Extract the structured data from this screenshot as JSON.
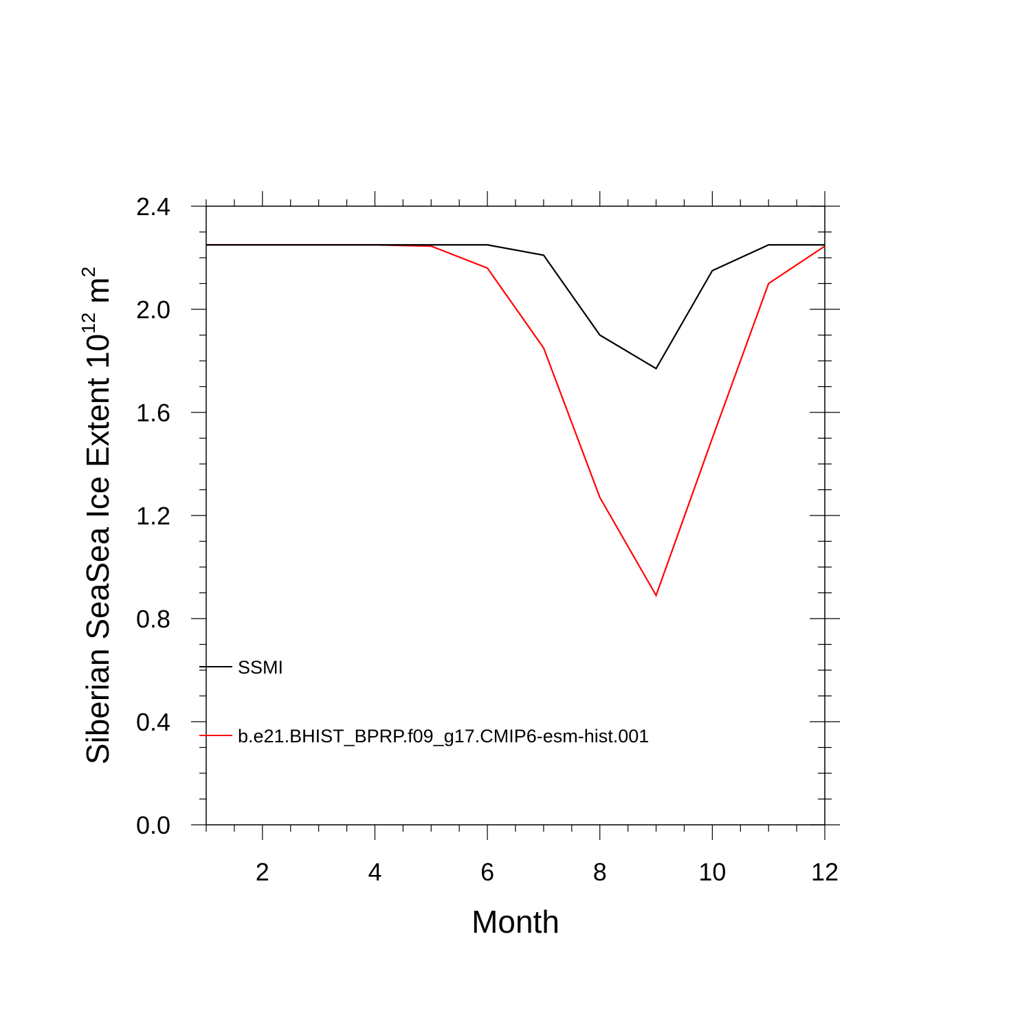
{
  "chart_data": {
    "type": "line",
    "xlabel": "Month",
    "ylabel_main": "Siberian SeaSea Ice Extent 10",
    "ylabel_exp": "12",
    "ylabel_unit": " m",
    "ylabel_unit_exp": "2",
    "xlim": [
      1,
      12
    ],
    "ylim": [
      0,
      2.4
    ],
    "xticks": [
      2,
      4,
      6,
      8,
      10,
      12
    ],
    "xtick_labels": [
      "2",
      "4",
      "6",
      "8",
      "10",
      "12"
    ],
    "yticks": [
      0,
      0.4,
      0.8,
      1.2,
      1.6,
      2.0,
      2.4
    ],
    "ytick_labels": [
      "0.0",
      "0.4",
      "0.8",
      "1.2",
      "1.6",
      "2.0",
      "2.4"
    ],
    "legend_position": "lower-left",
    "series": [
      {
        "name": "SSMI",
        "color": "#000000",
        "x": [
          1,
          2,
          3,
          4,
          5,
          6,
          7,
          8,
          9,
          10,
          11,
          12
        ],
        "values": [
          2.25,
          2.25,
          2.25,
          2.25,
          2.25,
          2.25,
          2.21,
          1.9,
          1.77,
          2.15,
          2.25,
          2.25
        ]
      },
      {
        "name": "b.e21.BHIST_BPRP.f09_g17.CMIP6-esm-hist.001",
        "color": "#ff0000",
        "x": [
          1,
          2,
          3,
          4,
          5,
          6,
          7,
          8,
          9,
          10,
          11,
          12
        ],
        "values": [
          2.25,
          2.25,
          2.25,
          2.25,
          2.245,
          2.16,
          1.85,
          1.27,
          0.89,
          1.5,
          2.1,
          2.245
        ]
      }
    ]
  }
}
